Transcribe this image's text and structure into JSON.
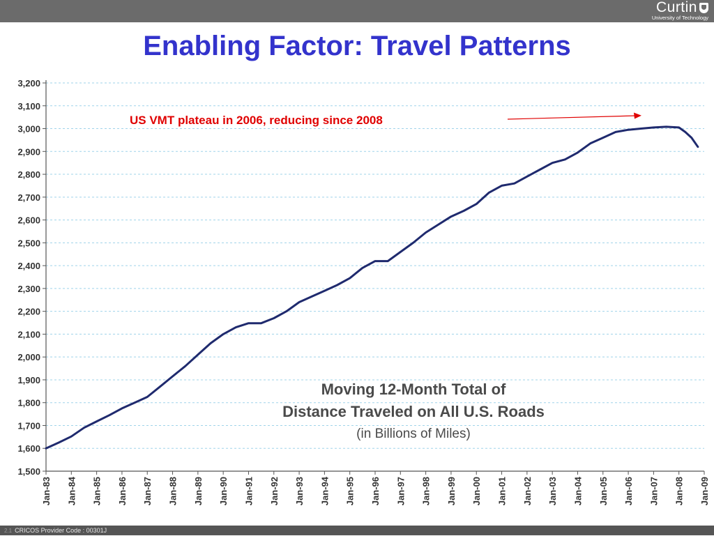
{
  "header": {
    "logo_word": "Curtin",
    "logo_subtext": "University of Technology"
  },
  "slide": {
    "title": "Enabling Factor: Travel Patterns"
  },
  "footer": {
    "slide_number": "2.1",
    "text": "CRICOS Provider Code : 00301J"
  },
  "colors": {
    "title": "#3333cc",
    "line": "#1f2a6e",
    "annotation": "#e00000",
    "grid": "#9fd3ea",
    "chart_title": "#4a4a4a"
  },
  "chart_data": {
    "type": "line",
    "title_lines": [
      "Moving 12-Month Total of",
      "Distance Traveled on All U.S. Roads"
    ],
    "subtitle": "(in Billions of Miles)",
    "annotation": "US VMT plateau in 2006, reducing since 2008",
    "xlabel": "",
    "ylabel": "",
    "ylim": [
      1500,
      3200
    ],
    "yticks": [
      1500,
      1600,
      1700,
      1800,
      1900,
      2000,
      2100,
      2200,
      2300,
      2400,
      2500,
      2600,
      2700,
      2800,
      2900,
      3000,
      3100,
      3200
    ],
    "ytick_labels": [
      "1,500",
      "1,600",
      "1,700",
      "1,800",
      "1,900",
      "2,000",
      "2,100",
      "2,200",
      "2,300",
      "2,400",
      "2,500",
      "2,600",
      "2,700",
      "2,800",
      "2,900",
      "3,000",
      "3,100",
      "3,200"
    ],
    "xtick_labels": [
      "Jan-83",
      "Jan-84",
      "Jan-85",
      "Jan-86",
      "Jan-87",
      "Jan-88",
      "Jan-89",
      "Jan-90",
      "Jan-91",
      "Jan-92",
      "Jan-93",
      "Jan-94",
      "Jan-95",
      "Jan-96",
      "Jan-97",
      "Jan-98",
      "Jan-99",
      "Jan-00",
      "Jan-01",
      "Jan-02",
      "Jan-03",
      "Jan-04",
      "Jan-05",
      "Jan-06",
      "Jan-07",
      "Jan-08",
      "Jan-09"
    ],
    "grid": true,
    "series": [
      {
        "x": [
          "Jan-83",
          "Jul-83",
          "Jan-84",
          "Jul-84",
          "Jan-85",
          "Jul-85",
          "Jan-86",
          "Jul-86",
          "Jan-87",
          "Jul-87",
          "Jan-88",
          "Jul-88",
          "Jan-89",
          "Jul-89",
          "Jan-90",
          "Jul-90",
          "Jan-91",
          "Jul-91",
          "Jan-92",
          "Jul-92",
          "Jan-93",
          "Jul-93",
          "Jan-94",
          "Jul-94",
          "Jan-95",
          "Jul-95",
          "Jan-96",
          "Jul-96",
          "Jan-97",
          "Jul-97",
          "Jan-98",
          "Jul-98",
          "Jan-99",
          "Jul-99",
          "Jan-00",
          "Jul-00",
          "Jan-01",
          "Jul-01",
          "Jan-02",
          "Jul-02",
          "Jan-03",
          "Jul-03",
          "Jan-04",
          "Jul-04",
          "Jan-05",
          "Jul-05",
          "Jan-06",
          "Jul-06",
          "Jan-07",
          "Jul-07",
          "Jan-08",
          "Apr-08",
          "Jul-08",
          "Oct-08"
        ],
        "values": [
          1600,
          1625,
          1652,
          1690,
          1718,
          1745,
          1775,
          1800,
          1825,
          1870,
          1915,
          1960,
          2010,
          2060,
          2100,
          2130,
          2148,
          2148,
          2170,
          2200,
          2240,
          2265,
          2290,
          2315,
          2345,
          2390,
          2420,
          2420,
          2460,
          2500,
          2545,
          2580,
          2615,
          2640,
          2670,
          2720,
          2750,
          2760,
          2790,
          2820,
          2850,
          2865,
          2895,
          2935,
          2960,
          2985,
          2995,
          3000,
          3005,
          3008,
          3005,
          2985,
          2960,
          2920
        ]
      }
    ]
  }
}
